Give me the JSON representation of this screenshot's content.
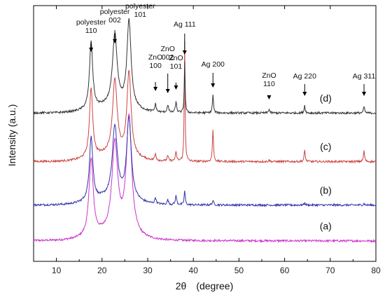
{
  "chart_data": {
    "type": "line",
    "xlabel": "2θ　(degree)",
    "ylabel": "Intensity (a.u.)",
    "xlim": [
      5,
      80
    ],
    "x_ticks": [
      "10",
      "20",
      "30",
      "40",
      "50",
      "60",
      "70",
      "80"
    ],
    "x_tick_values": [
      10,
      20,
      30,
      40,
      50,
      60,
      70,
      80
    ],
    "y_ticks_shown": false,
    "grid": false,
    "series": [
      {
        "name": "(a)",
        "color": "#cc33cc",
        "baseline": 0.08,
        "peaks": [
          {
            "x": 17.6,
            "h": 0.3,
            "w": 0.55
          },
          {
            "x": 22.8,
            "h": 0.35,
            "w": 0.75
          },
          {
            "x": 25.9,
            "h": 0.46,
            "w": 0.7
          }
        ]
      },
      {
        "name": "(b)",
        "color": "#3333aa",
        "baseline": 0.22,
        "peaks": [
          {
            "x": 17.6,
            "h": 0.25,
            "w": 0.45
          },
          {
            "x": 22.8,
            "h": 0.28,
            "w": 0.65
          },
          {
            "x": 25.9,
            "h": 0.32,
            "w": 0.6
          },
          {
            "x": 31.7,
            "h": 0.024,
            "w": 0.18
          },
          {
            "x": 34.4,
            "h": 0.018,
            "w": 0.18
          },
          {
            "x": 36.2,
            "h": 0.034,
            "w": 0.18
          },
          {
            "x": 38.1,
            "h": 0.055,
            "w": 0.14
          },
          {
            "x": 44.3,
            "h": 0.018,
            "w": 0.16
          },
          {
            "x": 64.4,
            "h": 0.008,
            "w": 0.16
          },
          {
            "x": 77.4,
            "h": 0.006,
            "w": 0.16
          }
        ]
      },
      {
        "name": "(c)",
        "color": "#cc4444",
        "baseline": 0.39,
        "peaks": [
          {
            "x": 17.6,
            "h": 0.27,
            "w": 0.42
          },
          {
            "x": 22.8,
            "h": 0.29,
            "w": 0.6
          },
          {
            "x": 25.9,
            "h": 0.33,
            "w": 0.55
          },
          {
            "x": 31.7,
            "h": 0.025,
            "w": 0.18
          },
          {
            "x": 34.4,
            "h": 0.02,
            "w": 0.18
          },
          {
            "x": 36.2,
            "h": 0.034,
            "w": 0.18
          },
          {
            "x": 38.1,
            "h": 0.47,
            "w": 0.11
          },
          {
            "x": 44.3,
            "h": 0.125,
            "w": 0.14
          },
          {
            "x": 56.6,
            "h": 0.006,
            "w": 0.16
          },
          {
            "x": 64.4,
            "h": 0.045,
            "w": 0.14
          },
          {
            "x": 77.4,
            "h": 0.042,
            "w": 0.14
          }
        ]
      },
      {
        "name": "(d)",
        "color": "#333333",
        "baseline": 0.58,
        "peaks": [
          {
            "x": 17.6,
            "h": 0.26,
            "w": 0.42
          },
          {
            "x": 22.8,
            "h": 0.28,
            "w": 0.6
          },
          {
            "x": 25.9,
            "h": 0.34,
            "w": 0.55
          },
          {
            "x": 31.7,
            "h": 0.03,
            "w": 0.18
          },
          {
            "x": 34.4,
            "h": 0.03,
            "w": 0.18
          },
          {
            "x": 36.2,
            "h": 0.04,
            "w": 0.18
          },
          {
            "x": 38.1,
            "h": 0.2,
            "w": 0.11
          },
          {
            "x": 44.3,
            "h": 0.07,
            "w": 0.14
          },
          {
            "x": 56.6,
            "h": 0.015,
            "w": 0.16
          },
          {
            "x": 64.4,
            "h": 0.03,
            "w": 0.14
          },
          {
            "x": 77.4,
            "h": 0.025,
            "w": 0.14
          }
        ]
      }
    ],
    "annotations": [
      {
        "lines": [
          "polyester",
          "110"
        ],
        "x": 17.6
      },
      {
        "lines": [
          "polyester",
          "002"
        ],
        "x": 22.8
      },
      {
        "lines": [
          "polyester",
          "101"
        ],
        "x": 25.9
      },
      {
        "lines": [
          "ZnO",
          "100"
        ],
        "x": 31.7
      },
      {
        "lines": [
          "ZnO",
          "002"
        ],
        "x": 34.4
      },
      {
        "lines": [
          "ZnO",
          "101"
        ],
        "x": 36.2
      },
      {
        "lines": [
          "Ag 111"
        ],
        "x": 38.1
      },
      {
        "lines": [
          "Ag 200"
        ],
        "x": 44.3
      },
      {
        "lines": [
          "ZnO",
          "110"
        ],
        "x": 56.6
      },
      {
        "lines": [
          "Ag 220"
        ],
        "x": 64.4
      },
      {
        "lines": [
          "Ag 311"
        ],
        "x": 77.4
      }
    ]
  }
}
